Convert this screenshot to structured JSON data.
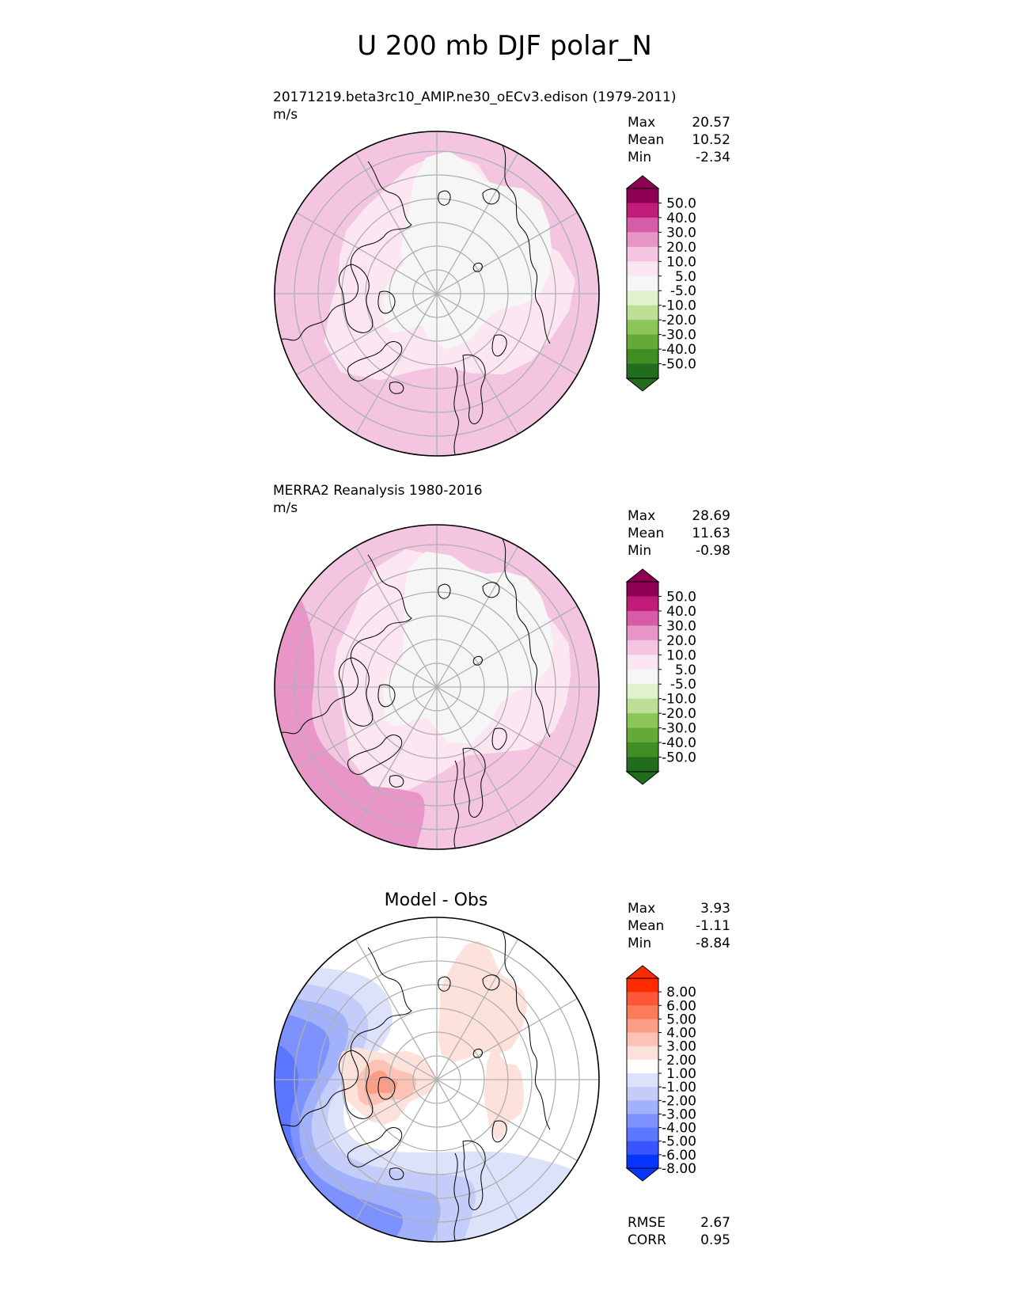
{
  "title": "U 200 mb DJF polar_N",
  "colors": {
    "test_levels": [
      "#226d1d",
      "#3f8d23",
      "#62a936",
      "#8cc55a",
      "#bcdf95",
      "#e2f1cd",
      "#f6f6f6",
      "#fce6f1",
      "#f3c5e1",
      "#e896c7",
      "#d55ca5",
      "#c01b79",
      "#8e0152"
    ],
    "diff_levels": [
      "#0535ff",
      "#3756ff",
      "#5c77ff",
      "#7d92ff",
      "#a1b1fb",
      "#c4cdf9",
      "#dde2fb",
      "#ffffff",
      "#fde2dc",
      "#fcc3b4",
      "#fc9d85",
      "#fc7b5d",
      "#fc5737",
      "#ff2a00"
    ],
    "coast": "#000000",
    "grid": "#b0b0b0"
  },
  "chart_data": [
    {
      "type": "heatmap",
      "projection": "north-polar-stereographic",
      "title": "20171219.beta3rc10_AMIP.ne30_oECv3.edison (1979-2011)",
      "units": "m/s",
      "stats": [
        {
          "label": "Max",
          "value": "20.57"
        },
        {
          "label": "Mean",
          "value": "10.52"
        },
        {
          "label": "Min",
          "value": "-2.34"
        }
      ],
      "colorbar_ticks": [
        "50.0",
        "40.0",
        "30.0",
        "20.0",
        "10.0",
        "5.0",
        "-5.0",
        "-10.0",
        "-20.0",
        "-30.0",
        "-40.0",
        "-50.0"
      ],
      "colorbar_extend": "both"
    },
    {
      "type": "heatmap",
      "projection": "north-polar-stereographic",
      "title": "MERRA2 Reanalysis 1980-2016",
      "units": "m/s",
      "stats": [
        {
          "label": "Max",
          "value": "28.69"
        },
        {
          "label": "Mean",
          "value": "11.63"
        },
        {
          "label": "Min",
          "value": "-0.98"
        }
      ],
      "colorbar_ticks": [
        "50.0",
        "40.0",
        "30.0",
        "20.0",
        "10.0",
        "5.0",
        "-5.0",
        "-10.0",
        "-20.0",
        "-30.0",
        "-40.0",
        "-50.0"
      ],
      "colorbar_extend": "both"
    },
    {
      "type": "heatmap",
      "projection": "north-polar-stereographic",
      "title": "Model - Obs",
      "stats": [
        {
          "label": "Max",
          "value": "3.93"
        },
        {
          "label": "Mean",
          "value": "-1.11"
        },
        {
          "label": "Min",
          "value": "-8.84"
        }
      ],
      "colorbar_ticks": [
        "8.00",
        "6.00",
        "5.00",
        "4.00",
        "3.00",
        "2.00",
        "1.00",
        "-1.00",
        "-2.00",
        "-3.00",
        "-4.00",
        "-5.00",
        "-6.00",
        "-8.00"
      ],
      "colorbar_extend": "both",
      "metrics": [
        {
          "label": "RMSE",
          "value": "2.67"
        },
        {
          "label": "CORR",
          "value": "0.95"
        }
      ]
    }
  ]
}
